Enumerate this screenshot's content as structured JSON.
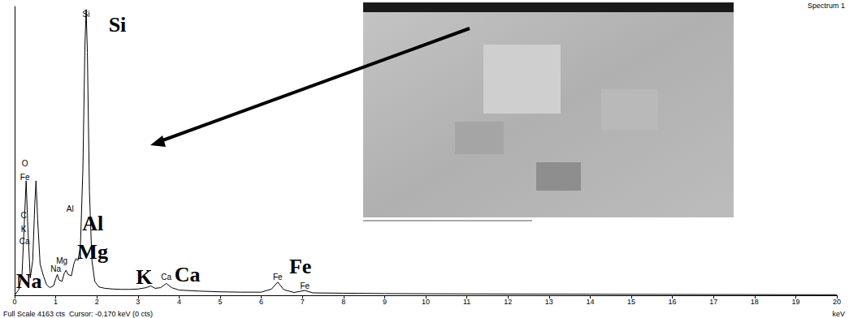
{
  "chart_data": {
    "type": "line",
    "title": "Spectrum 1",
    "footer": "Full Scale 4163 cts  Cursor: -0.170 keV (0 cts)",
    "x_label": "keV",
    "x": [
      0,
      0.1,
      0.18,
      0.24,
      0.28,
      0.32,
      0.38,
      0.44,
      0.49,
      0.52,
      0.56,
      0.62,
      0.7,
      0.78,
      0.86,
      0.95,
      1.0,
      1.04,
      1.08,
      1.15,
      1.21,
      1.25,
      1.3,
      1.38,
      1.44,
      1.49,
      1.54,
      1.6,
      1.66,
      1.71,
      1.74,
      1.77,
      1.82,
      1.88,
      1.95,
      2.05,
      2.2,
      2.4,
      2.6,
      2.8,
      3.0,
      3.2,
      3.31,
      3.42,
      3.55,
      3.69,
      3.82,
      4.0,
      4.5,
      5.0,
      5.5,
      6.0,
      6.25,
      6.4,
      6.55,
      6.8,
      7.06,
      7.25,
      8,
      9,
      10,
      12,
      14,
      16,
      18,
      20
    ],
    "values": [
      0,
      80,
      300,
      1100,
      1650,
      1000,
      250,
      500,
      1300,
      1650,
      1100,
      450,
      280,
      150,
      110,
      140,
      240,
      300,
      220,
      200,
      320,
      360,
      300,
      280,
      450,
      530,
      500,
      700,
      1800,
      3600,
      4120,
      3500,
      1500,
      500,
      200,
      120,
      100,
      90,
      85,
      85,
      90,
      110,
      135,
      100,
      110,
      170,
      110,
      75,
      60,
      50,
      45,
      45,
      90,
      190,
      80,
      40,
      70,
      35,
      30,
      25,
      22,
      18,
      15,
      12,
      10,
      8
    ],
    "color": "#000000",
    "xlim": [
      0,
      20
    ],
    "xticks": [
      0,
      1,
      2,
      3,
      4,
      5,
      6,
      7,
      8,
      9,
      10,
      11,
      12,
      13,
      14,
      15,
      16,
      17,
      18,
      19,
      20
    ],
    "ylim": [
      0,
      4163
    ],
    "grid": false,
    "tick_labels": "x",
    "annotations": [
      {
        "text": "Si",
        "x": 2.5,
        "y": 3900
      },
      {
        "text": "Al",
        "x": 1.9,
        "y": 1040
      },
      {
        "text": "Mg",
        "x": 1.9,
        "y": 630
      },
      {
        "text": "Na",
        "x": 0.35,
        "y": 200
      },
      {
        "text": "K",
        "x": 3.15,
        "y": 260
      },
      {
        "text": "Ca",
        "x": 4.2,
        "y": 300
      },
      {
        "text": "Fe",
        "x": 6.95,
        "y": 420
      }
    ],
    "peak_labels": [
      {
        "text": "Si",
        "x": 1.74,
        "y": 4050
      },
      {
        "text": "O",
        "x": 0.25,
        "y": 1900
      },
      {
        "text": "Fe",
        "x": 0.25,
        "y": 1700
      },
      {
        "text": "C",
        "x": 0.22,
        "y": 1150
      },
      {
        "text": "K",
        "x": 0.22,
        "y": 950
      },
      {
        "text": "Ca",
        "x": 0.24,
        "y": 780
      },
      {
        "text": "Al",
        "x": 1.35,
        "y": 1250
      },
      {
        "text": "Mg",
        "x": 1.15,
        "y": 500
      },
      {
        "text": "Na",
        "x": 1.0,
        "y": 380
      },
      {
        "text": "Ca",
        "x": 3.69,
        "y": 260
      },
      {
        "text": "Fe",
        "x": 6.4,
        "y": 260
      },
      {
        "text": "Fe",
        "x": 7.06,
        "y": 130
      }
    ]
  }
}
